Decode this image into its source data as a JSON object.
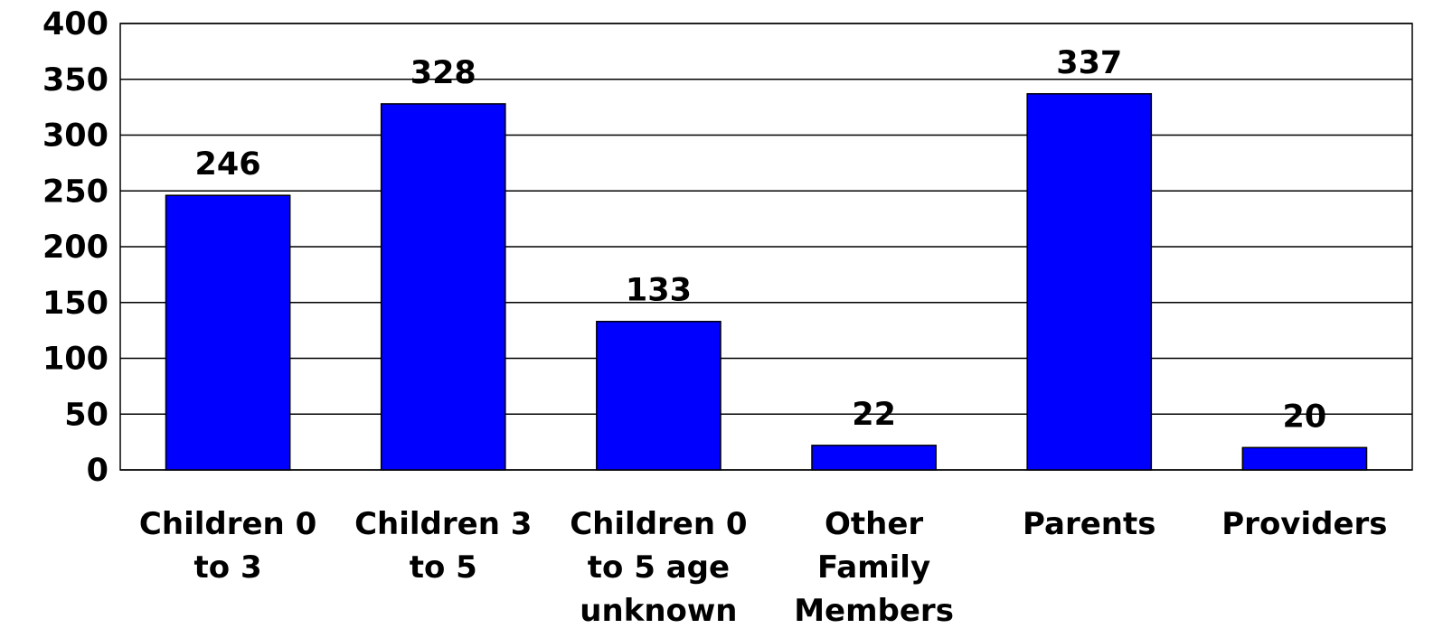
{
  "chart_data": {
    "type": "bar",
    "categories": [
      "Children 0 to 3",
      "Children 3 to 5",
      "Children 0 to 5 age unknown",
      "Other Family Members",
      "Parents",
      "Providers"
    ],
    "values": [
      246,
      328,
      133,
      22,
      337,
      20
    ],
    "color": "#0000ff",
    "ylim": [
      0,
      400
    ],
    "yticks": [
      0,
      50,
      100,
      150,
      200,
      250,
      300,
      350,
      400
    ],
    "grid": true
  }
}
